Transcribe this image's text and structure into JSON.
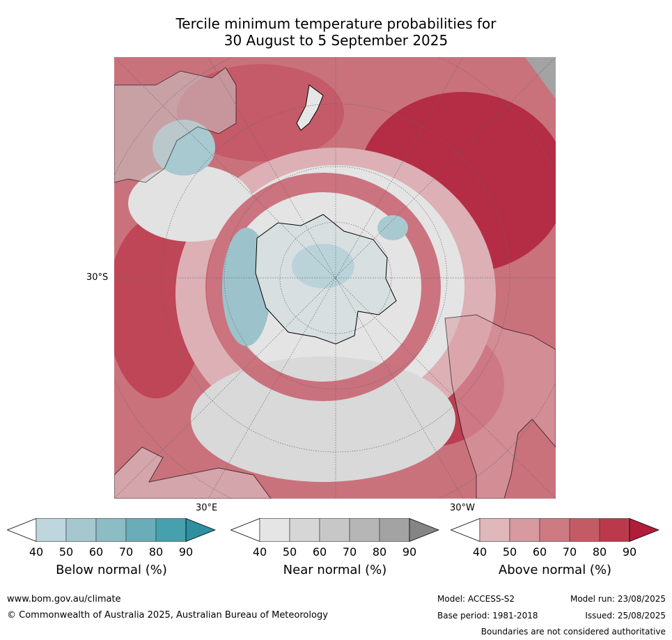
{
  "title": {
    "line1": "Tercile minimum temperature probabilities for",
    "line2": "30 August to 5 September 2025"
  },
  "map": {
    "projection": "south-polar stereographic",
    "labels": {
      "lat_30s": "30°S",
      "lon_30e": "30°E",
      "lon_30w": "30°W"
    }
  },
  "colorbars": [
    {
      "title": "Below normal (%)",
      "ticks": [
        "40",
        "50",
        "60",
        "70",
        "80",
        "90"
      ],
      "colors": [
        "#ffffff",
        "#bed6dd",
        "#a5c8cf",
        "#8cbcc4",
        "#6aadb8",
        "#47a0ae",
        "#2e8fa1"
      ]
    },
    {
      "title": "Near normal (%)",
      "ticks": [
        "40",
        "50",
        "60",
        "70",
        "80",
        "90"
      ],
      "colors": [
        "#ffffff",
        "#e5e5e5",
        "#d6d6d6",
        "#c7c7c7",
        "#b6b6b6",
        "#a3a3a3",
        "#858585"
      ]
    },
    {
      "title": "Above normal (%)",
      "ticks": [
        "40",
        "50",
        "60",
        "70",
        "80",
        "90"
      ],
      "colors": [
        "#ffffff",
        "#e0b7bb",
        "#d79aa1",
        "#cd7a83",
        "#c45a66",
        "#ba3a4b",
        "#b01d3a"
      ]
    }
  ],
  "footer": {
    "url": "www.bom.gov.au/climate",
    "copyright": "© Commonwealth of Australia 2025, Australian Bureau of Meteorology",
    "model": "Model: ACCESS-S2",
    "base_period": "Base period: 1981-2018",
    "model_run": "Model run: 23/08/2025",
    "issued": "Issued: 25/08/2025",
    "disclaimer": "Boundaries are not considered authoritative"
  }
}
